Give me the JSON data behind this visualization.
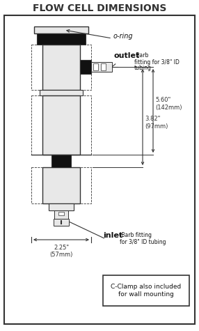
{
  "title": "FLOW CELL DIMENSIONS",
  "title_fontsize": 10,
  "bg_color": "#ffffff",
  "border_color": "#333333",
  "dim_color": "#333333",
  "label_outlet": "outlet",
  "label_outlet_sub": "Barb\nfitting for 3/8\" ID\ntubing",
  "label_inlet": "inlet",
  "label_inlet_sub": "Barb fitting\nfor 3/8\" ID tubing",
  "label_oring": "o-ring",
  "dim1_label": "5.60\"\n(142mm)",
  "dim2_label": "3.82\"\n(97mm)",
  "dim3_label": "2.25\"\n(57mm)",
  "note_label": "C-Clamp also included\nfor wall mounting",
  "line_color": "#333333",
  "dark_fill": "#111111",
  "light_fill": "#e8e8e8",
  "white_fill": "#ffffff",
  "gray_fill": "#999999",
  "title_color": "#333333"
}
